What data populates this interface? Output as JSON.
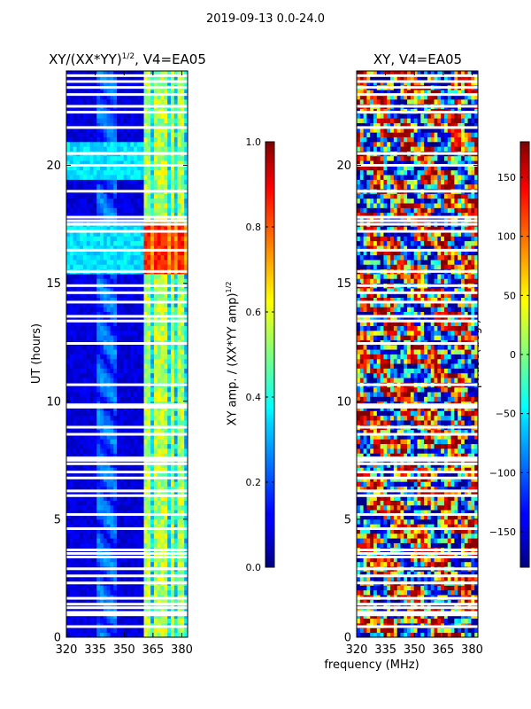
{
  "suptitle": "2019-09-13 0.0-24.0",
  "panels": [
    {
      "title_prefix": "XY/(XX*YY)",
      "title_sup": "1/2",
      "title_suffix": ", V4=EA05"
    },
    {
      "title_prefix": "XY, V4=EA05",
      "title_sup": "",
      "title_suffix": ""
    }
  ],
  "colorbars": [
    {
      "label_prefix": "XY amp. / (XX*YY amp)",
      "label_sup": "1/2",
      "range": [
        0.0,
        1.0
      ],
      "ticks": [
        "0.0",
        "0.2",
        "0.4",
        "0.6",
        "0.8",
        "1.0"
      ]
    },
    {
      "label_prefix": "phase(deg.)",
      "label_sup": "",
      "range": [
        -180,
        180
      ],
      "ticks": [
        "-150",
        "-100",
        "-50",
        "0",
        "50",
        "100",
        "150"
      ]
    }
  ],
  "chart_data": {
    "type": "heatmap",
    "colormap": "jet",
    "xlabel": "frequency (MHz)",
    "ylabel": "UT (hours)",
    "xlim": [
      320,
      383
    ],
    "ylim": [
      0,
      24
    ],
    "x_ticks": [
      "320",
      "335",
      "350",
      "365",
      "380"
    ],
    "y_ticks": [
      "0",
      "5",
      "10",
      "15",
      "20"
    ],
    "gap_rows_hours": [
      0.45,
      0.95,
      1.05,
      1.25,
      1.4,
      1.65,
      2.3,
      2.6,
      2.9,
      3.4,
      3.55,
      3.7,
      4.6,
      5.2,
      6.0,
      6.2,
      6.75,
      7.0,
      7.35,
      7.5,
      7.6,
      8.6,
      8.9,
      9.75,
      9.85,
      10.7,
      12.45,
      13.4,
      13.6,
      14.2,
      14.6,
      14.9,
      15.5,
      16.4,
      17.2,
      17.5,
      17.65,
      17.8,
      18.9,
      20.0,
      20.5,
      21.6,
      22.25,
      22.5,
      23.0,
      23.3,
      23.55,
      23.8
    ],
    "amplitude_features": [
      {
        "kind": "background",
        "value": 0.05
      },
      {
        "kind": "rfi_columns_MHz",
        "centers": [
          362,
          367,
          371,
          375,
          379
        ],
        "value": 0.55
      },
      {
        "kind": "band_hours",
        "range": [
          15.5,
          17.5
        ],
        "value": 0.85
      },
      {
        "kind": "band_hours",
        "range": [
          19.5,
          21.0
        ],
        "value": 0.4
      }
    ],
    "phase_range_deg": [
      -180,
      180
    ]
  }
}
